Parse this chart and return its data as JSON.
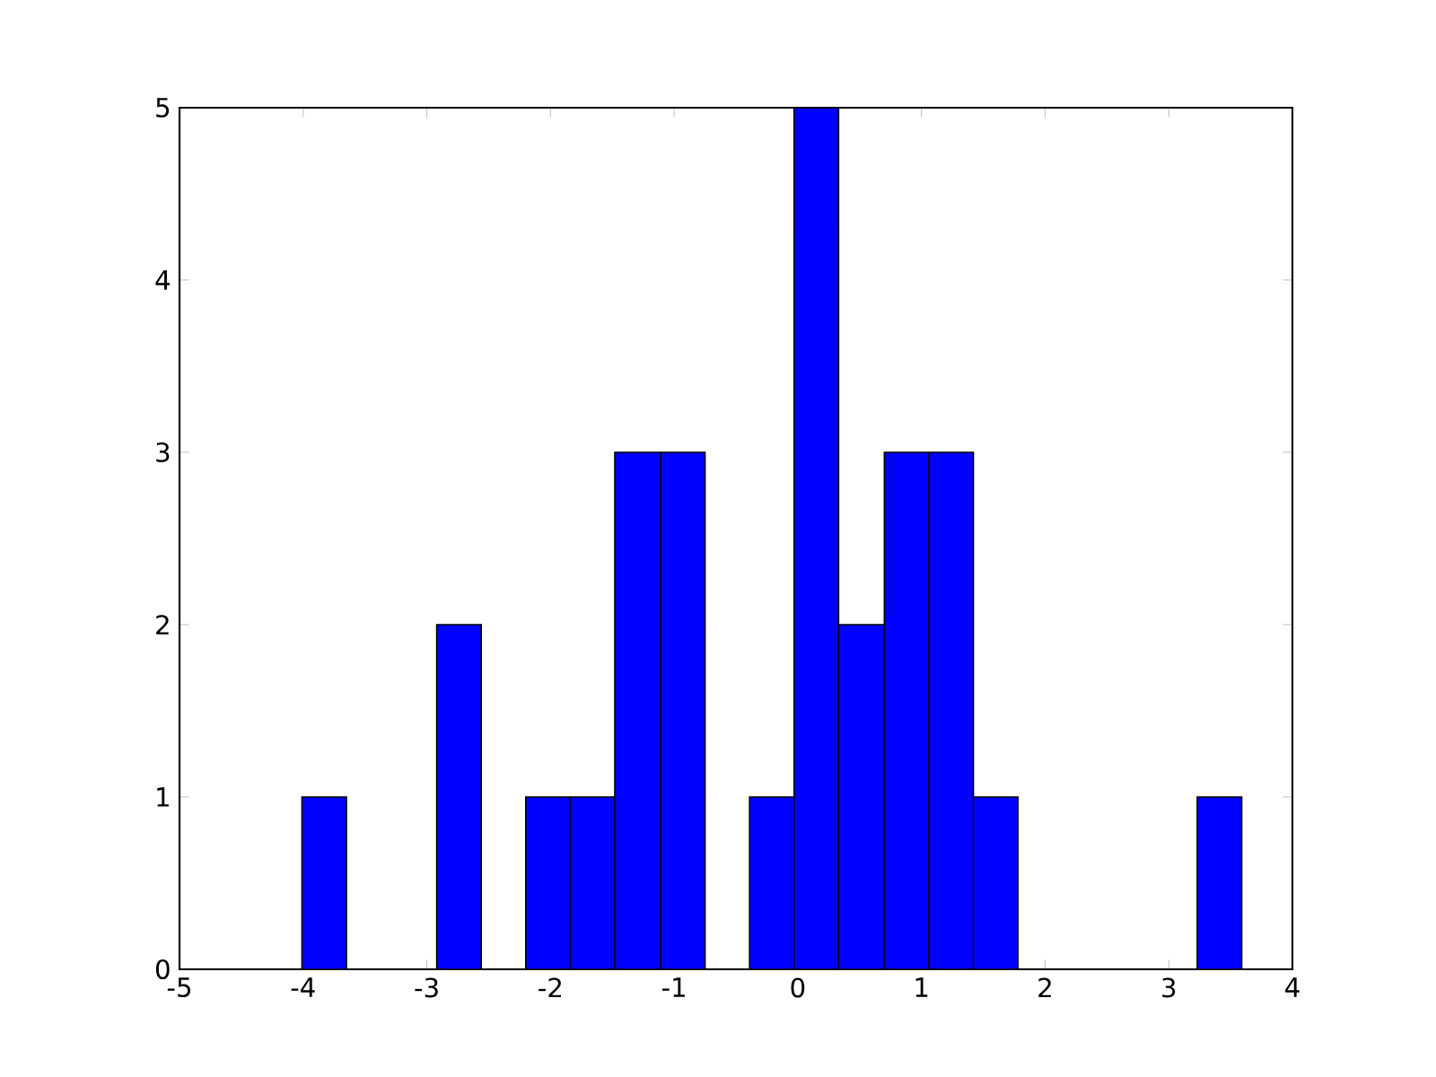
{
  "chart_data": {
    "type": "histogram",
    "bins": [
      -4.01,
      -3.65,
      -2.92,
      -2.56,
      -2.2,
      -1.84,
      -1.48,
      -1.11,
      -0.75,
      -0.39,
      -0.03,
      0.33,
      0.7,
      1.06,
      1.42,
      1.78,
      3.23,
      3.59
    ],
    "values": [
      1,
      0,
      2,
      0,
      1,
      1,
      3,
      3,
      0,
      1,
      5,
      2,
      3,
      3,
      1,
      0,
      1
    ],
    "color": "#0000ff",
    "xlim": [
      -5,
      4
    ],
    "xticks": [
      -5,
      -4,
      -3,
      -2,
      -1,
      0,
      1,
      2,
      3,
      4
    ],
    "ylim": [
      0,
      5
    ],
    "yticks": [
      0,
      1,
      2,
      3,
      4,
      5
    ]
  }
}
